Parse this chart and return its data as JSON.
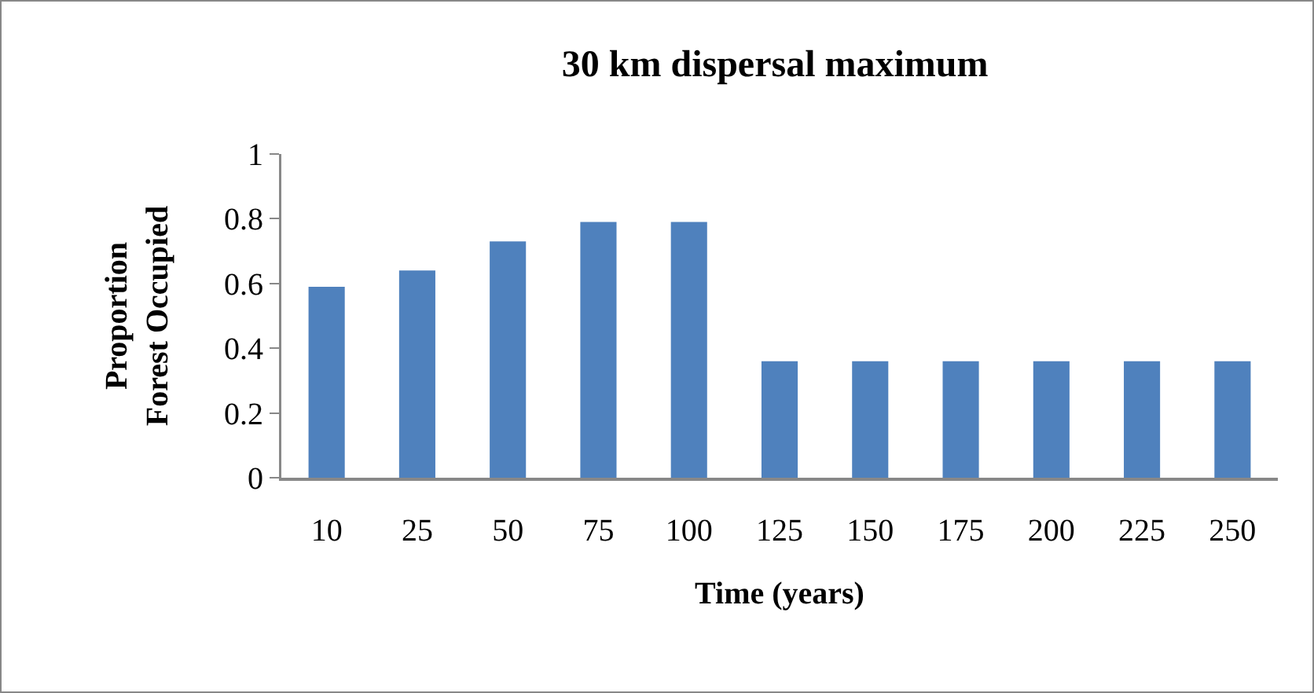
{
  "chart_data": {
    "type": "bar",
    "title": "30 km dispersal maximum",
    "xlabel": "Time (years)",
    "ylabel": "Proportion Forest Occupied",
    "categories": [
      "10",
      "25",
      "50",
      "75",
      "100",
      "125",
      "150",
      "175",
      "200",
      "225",
      "250"
    ],
    "values": [
      0.59,
      0.64,
      0.73,
      0.79,
      0.79,
      0.36,
      0.36,
      0.36,
      0.36,
      0.36,
      0.36
    ],
    "color": "#4f81bd",
    "ylim": [
      0,
      1
    ],
    "yticks": [
      0,
      0.2,
      0.4,
      0.6,
      0.8,
      1
    ],
    "grid": false
  }
}
